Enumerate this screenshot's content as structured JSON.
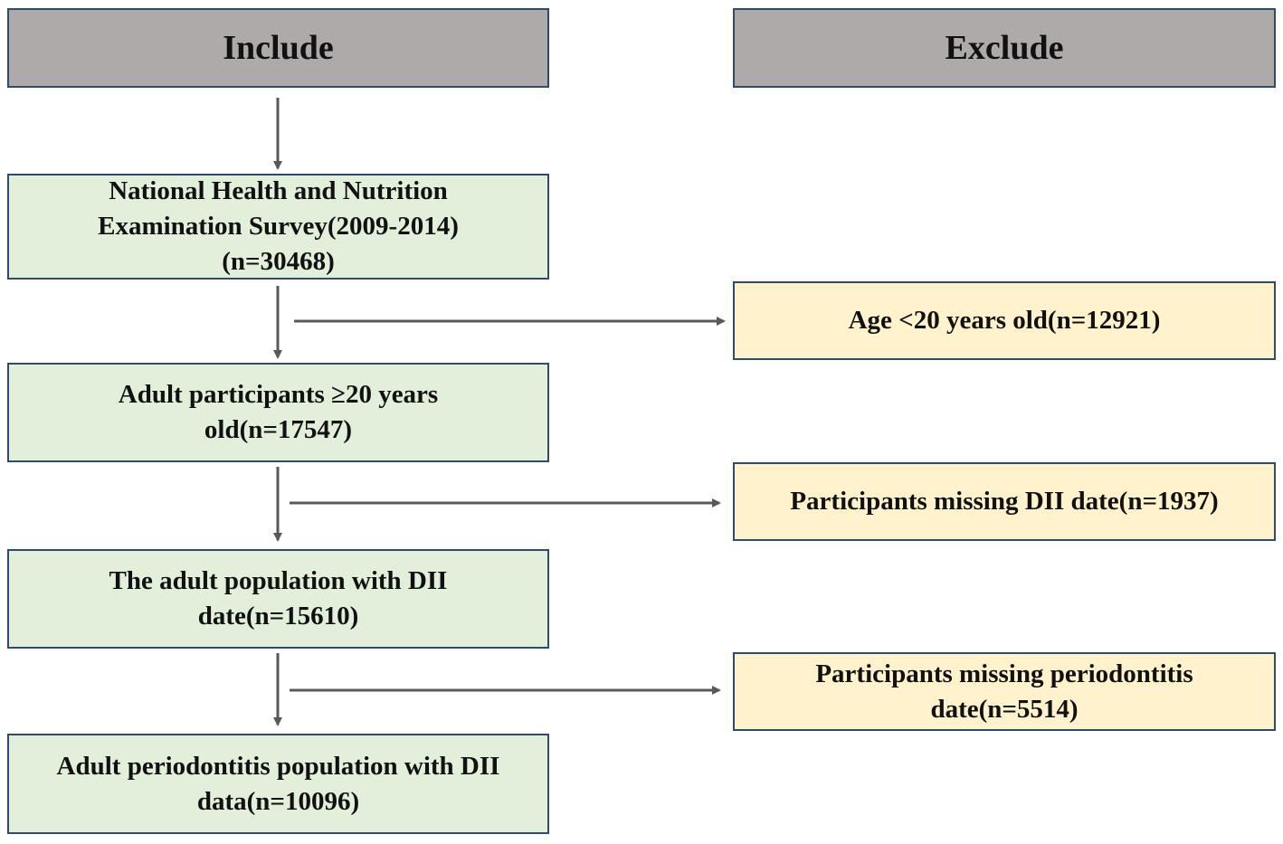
{
  "headers": {
    "include": "Include",
    "exclude": "Exclude"
  },
  "include_steps": [
    "National Health and Nutrition Examination Survey(2009-2014) (n=30468)",
    "Adult participants ≥20 years old(n=17547)",
    "The adult population with DII date(n=15610)",
    "Adult periodontitis population with DII data(n=10096)"
  ],
  "include_lines": [
    [
      "National Health and Nutrition",
      "Examination Survey(2009-2014)",
      "(n=30468)"
    ],
    [
      "Adult participants ≥20 years",
      "old(n=17547)"
    ],
    [
      "The adult population with DII",
      "date(n=15610)"
    ],
    [
      "Adult periodontitis population with DII",
      "data(n=10096)"
    ]
  ],
  "exclude_steps": [
    "Age <20 years old(n=12921)",
    "Participants missing DII date(n=1937)",
    "Participants missing periodontitis date(n=5514)"
  ],
  "exclude_lines": [
    [
      "Age <20 years old(n=12921)"
    ],
    [
      "Participants missing DII date(n=1937)"
    ],
    [
      "Participants missing periodontitis",
      "date(n=5514)"
    ]
  ],
  "colors": {
    "header_fill": "#aeaaaa",
    "include_fill": "#e2efda",
    "exclude_fill": "#fff2cc",
    "border": "#2f4b6b",
    "arrow": "#595959"
  }
}
